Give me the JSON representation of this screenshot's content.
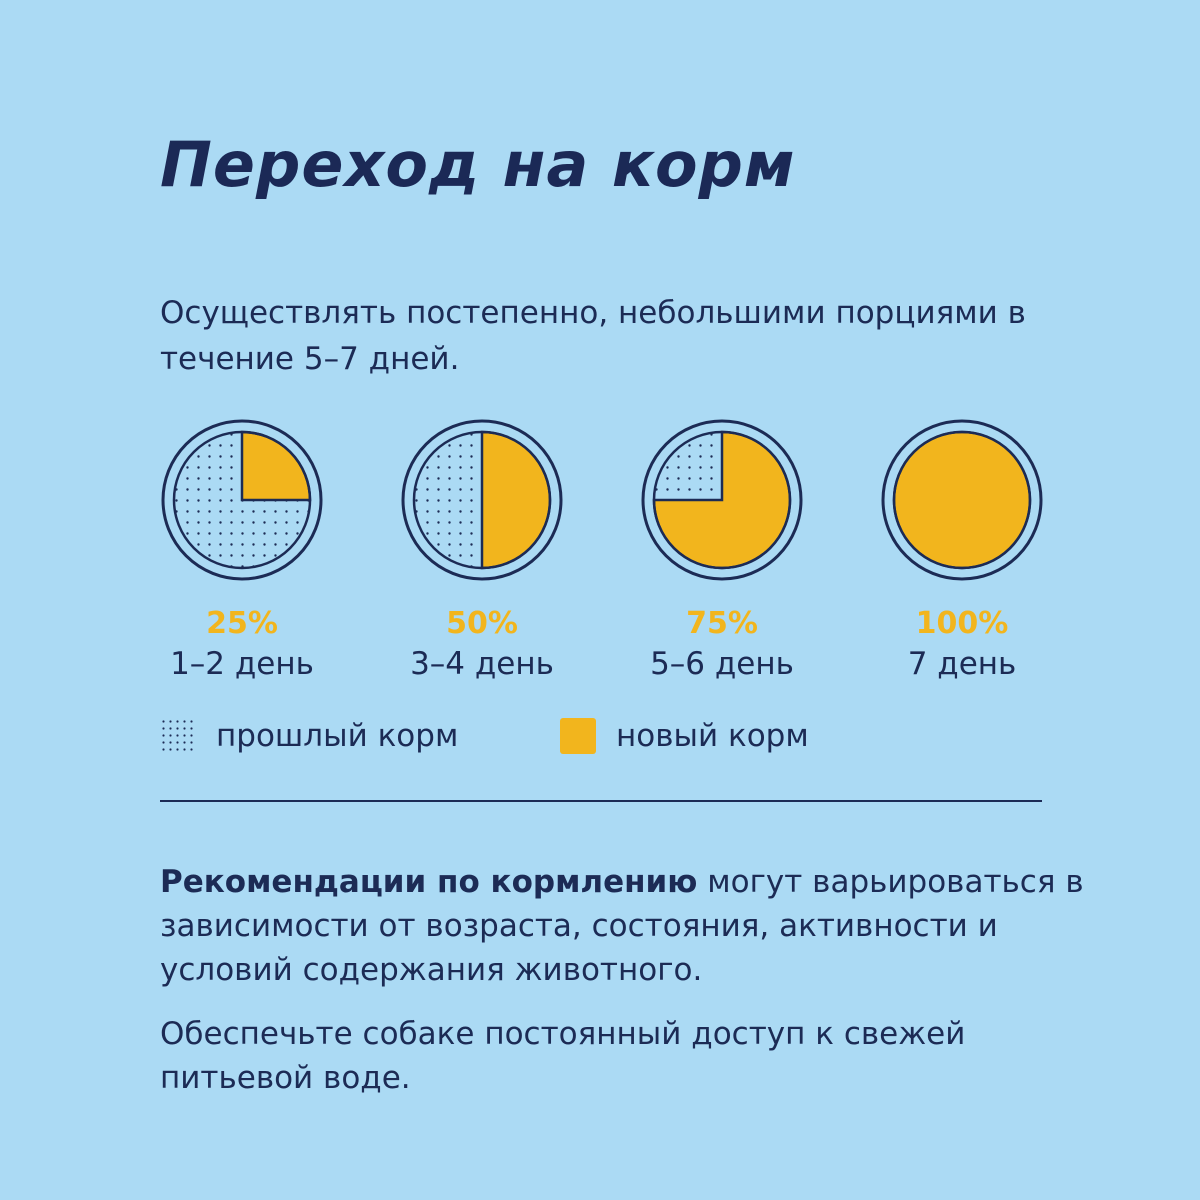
{
  "title": "Переход на корм",
  "intro": "Осуществлять постепенно, небольшими порциями в течение 5–7 дней.",
  "colors": {
    "background": "#abdaf4",
    "new_food": "#f2b51d",
    "ink": "#1c2b55"
  },
  "stages": [
    {
      "percent_label": "25%",
      "day_label": "1–2 день",
      "new_food_fraction": 0.25
    },
    {
      "percent_label": "50%",
      "day_label": "3–4 день",
      "new_food_fraction": 0.5
    },
    {
      "percent_label": "75%",
      "day_label": "5–6 день",
      "new_food_fraction": 0.75
    },
    {
      "percent_label": "100%",
      "day_label": "7 день",
      "new_food_fraction": 1.0
    }
  ],
  "legend": {
    "old_food": "прошлый корм",
    "new_food": "новый корм"
  },
  "recommendation": {
    "bold": "Рекомендации по кормлению",
    "rest": " могут варьироваться в зависимости от возраста, состояния, активности и условий содержания животного."
  },
  "water_note": "Обеспечьте собаке постоянный доступ к свежей питьевой воде."
}
